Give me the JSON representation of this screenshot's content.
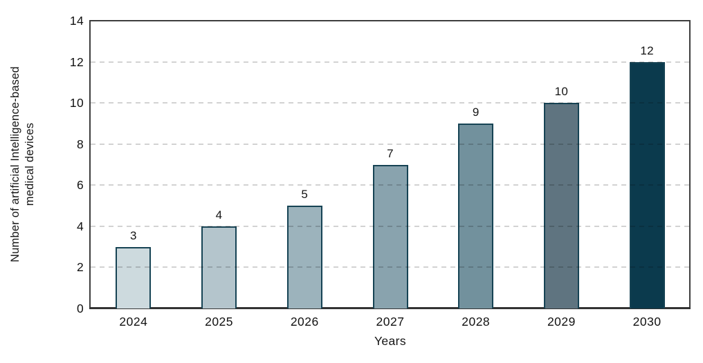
{
  "chart_data": {
    "type": "bar",
    "title": "",
    "xlabel": "Years",
    "ylabel": "Number of artificial Intelligence-based medical devices",
    "ylabel_lines": [
      "Number of artificial Intelligence-based",
      "medical devices"
    ],
    "categories": [
      "2024",
      "2025",
      "2026",
      "2027",
      "2028",
      "2029",
      "2030"
    ],
    "values": [
      3,
      4,
      5,
      7,
      9,
      10,
      12
    ],
    "value_labels": [
      "3",
      "4",
      "5",
      "7",
      "9",
      "10",
      "12"
    ],
    "ylim": [
      0,
      14
    ],
    "yticks": [
      0,
      2,
      4,
      6,
      8,
      10,
      12,
      14
    ],
    "ytick_labels": [
      "0",
      "2",
      "4",
      "6",
      "8",
      "10",
      "12",
      "14"
    ],
    "grid": "horizontal dashed, drawn over bars",
    "legend": "none",
    "bar_colors": [
      "#cddade",
      "#b4c5cc",
      "#9cb3bc",
      "#89a3ae",
      "#72919d",
      "#5f7480",
      "#0b3a4d"
    ],
    "bar_border_color": "#164354",
    "gridline_color": "#d2d2d2",
    "axis_color": "#3d3d3d",
    "text_color": "#141414",
    "background_color": "#ffffff"
  }
}
